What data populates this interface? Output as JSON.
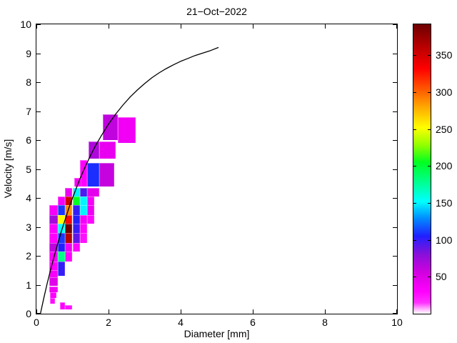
{
  "title": "21−Oct−2022",
  "axes": {
    "xlabel": "Diameter [mm]",
    "ylabel": "Velocity [m/s]",
    "xlim": [
      0,
      10
    ],
    "ylim": [
      0,
      10
    ],
    "x_ticks": [
      0,
      2,
      4,
      6,
      8,
      10
    ],
    "y_ticks": [
      0,
      1,
      2,
      3,
      4,
      5,
      6,
      7,
      8,
      9,
      10
    ]
  },
  "colorbar": {
    "vmin": 0,
    "vmax": 392,
    "ticks": [
      50,
      100,
      150,
      200,
      250,
      300,
      350
    ],
    "stops": [
      [
        0,
        "#ffffff"
      ],
      [
        6,
        "#ffb3ff"
      ],
      [
        15,
        "#ff30ff"
      ],
      [
        30,
        "#ff00ff"
      ],
      [
        55,
        "#d400e0"
      ],
      [
        80,
        "#8a10d8"
      ],
      [
        105,
        "#2020ff"
      ],
      [
        130,
        "#0090ff"
      ],
      [
        152,
        "#00ffff"
      ],
      [
        178,
        "#00ff90"
      ],
      [
        205,
        "#00ff20"
      ],
      [
        228,
        "#90ff00"
      ],
      [
        252,
        "#ffff00"
      ],
      [
        278,
        "#ffae00"
      ],
      [
        305,
        "#ff5500"
      ],
      [
        332,
        "#ff0000"
      ],
      [
        362,
        "#b70000"
      ],
      [
        392,
        "#6e0000"
      ]
    ]
  },
  "chart_data": {
    "type": "heatmap",
    "title": "21−Oct−2022",
    "xlabel": "Diameter [mm]",
    "ylabel": "Velocity [m/s]",
    "xlim": [
      0,
      10
    ],
    "ylim": [
      0,
      10
    ],
    "legend": "colorbar right, counts 0-392",
    "cells_format": [
      "d_min_mm",
      "d_max_mm",
      "v_min_ms",
      "v_max_ms",
      "count"
    ],
    "cells": [
      [
        1.85,
        2.25,
        6.0,
        6.9,
        62
      ],
      [
        2.25,
        2.75,
        5.9,
        6.8,
        38
      ],
      [
        1.45,
        1.75,
        5.35,
        5.95,
        68
      ],
      [
        1.75,
        2.2,
        5.35,
        5.95,
        42
      ],
      [
        1.2,
        1.4,
        4.4,
        5.3,
        30
      ],
      [
        1.4,
        1.75,
        4.4,
        5.2,
        108
      ],
      [
        1.75,
        2.15,
        4.4,
        5.2,
        60
      ],
      [
        1.05,
        1.25,
        4.4,
        4.7,
        32
      ],
      [
        0.8,
        1.0,
        4.05,
        4.35,
        40
      ],
      [
        1.0,
        1.2,
        4.05,
        4.35,
        150
      ],
      [
        1.2,
        1.4,
        4.05,
        4.35,
        95
      ],
      [
        1.4,
        1.75,
        4.05,
        4.35,
        45
      ],
      [
        0.6,
        0.8,
        3.75,
        4.05,
        35
      ],
      [
        0.8,
        1.0,
        3.75,
        4.05,
        352
      ],
      [
        1.0,
        1.2,
        3.75,
        4.05,
        205
      ],
      [
        1.2,
        1.4,
        3.75,
        4.05,
        150
      ],
      [
        1.4,
        1.6,
        3.75,
        4.05,
        35
      ],
      [
        0.35,
        0.6,
        3.4,
        3.75,
        35
      ],
      [
        0.6,
        0.8,
        3.4,
        3.75,
        110
      ],
      [
        0.8,
        1.0,
        3.4,
        3.75,
        288
      ],
      [
        1.0,
        1.2,
        3.4,
        3.75,
        100
      ],
      [
        1.2,
        1.4,
        3.4,
        3.75,
        150
      ],
      [
        1.4,
        1.6,
        3.4,
        3.75,
        40
      ],
      [
        0.35,
        0.6,
        3.1,
        3.4,
        72
      ],
      [
        0.6,
        0.8,
        3.1,
        3.4,
        252
      ],
      [
        0.8,
        1.0,
        3.1,
        3.4,
        330
      ],
      [
        1.0,
        1.2,
        3.1,
        3.4,
        105
      ],
      [
        1.2,
        1.4,
        3.1,
        3.4,
        35
      ],
      [
        1.4,
        1.6,
        3.1,
        3.4,
        28
      ],
      [
        0.35,
        0.6,
        2.8,
        3.1,
        32
      ],
      [
        0.6,
        0.8,
        2.8,
        3.1,
        152
      ],
      [
        0.8,
        1.0,
        2.8,
        3.1,
        390
      ],
      [
        1.0,
        1.2,
        2.8,
        3.1,
        100
      ],
      [
        1.2,
        1.4,
        2.8,
        3.1,
        28
      ],
      [
        0.35,
        0.6,
        2.45,
        2.8,
        30
      ],
      [
        0.6,
        0.8,
        2.45,
        2.8,
        110
      ],
      [
        0.8,
        1.0,
        2.45,
        2.8,
        362
      ],
      [
        1.0,
        1.2,
        2.45,
        2.8,
        90
      ],
      [
        1.2,
        1.4,
        2.45,
        2.8,
        25
      ],
      [
        0.35,
        0.6,
        2.15,
        2.45,
        62
      ],
      [
        0.6,
        0.8,
        2.15,
        2.45,
        105
      ],
      [
        0.8,
        1.0,
        2.15,
        2.45,
        40
      ],
      [
        1.0,
        1.2,
        2.15,
        2.45,
        28
      ],
      [
        0.35,
        0.6,
        1.8,
        2.15,
        33
      ],
      [
        0.6,
        0.8,
        1.8,
        2.15,
        180
      ],
      [
        0.8,
        1.0,
        1.8,
        2.15,
        30
      ],
      [
        0.35,
        0.6,
        1.5,
        1.8,
        30
      ],
      [
        0.6,
        0.8,
        1.3,
        1.8,
        100
      ],
      [
        0.35,
        0.6,
        1.25,
        1.5,
        35
      ],
      [
        0.35,
        0.6,
        0.95,
        1.25,
        48
      ],
      [
        0.35,
        0.6,
        0.75,
        0.95,
        38
      ],
      [
        0.38,
        0.55,
        0.55,
        0.75,
        30
      ],
      [
        0.38,
        0.52,
        0.35,
        0.55,
        26
      ],
      [
        0.65,
        0.8,
        0.15,
        0.4,
        30
      ],
      [
        0.8,
        1.0,
        0.15,
        0.3,
        25
      ]
    ],
    "curve": {
      "name": "terminal-velocity-curve",
      "points": [
        [
          0.11,
          0.0
        ],
        [
          0.2,
          0.51
        ],
        [
          0.3,
          1.05
        ],
        [
          0.4,
          1.55
        ],
        [
          0.5,
          2.02
        ],
        [
          0.6,
          2.46
        ],
        [
          0.7,
          2.88
        ],
        [
          0.8,
          3.26
        ],
        [
          0.9,
          3.65
        ],
        [
          1.0,
          3.99
        ],
        [
          1.1,
          4.32
        ],
        [
          1.2,
          4.64
        ],
        [
          1.35,
          5.07
        ],
        [
          1.5,
          5.47
        ],
        [
          1.65,
          5.83
        ],
        [
          1.8,
          6.15
        ],
        [
          2.0,
          6.55
        ],
        [
          2.2,
          6.9
        ],
        [
          2.4,
          7.21
        ],
        [
          2.6,
          7.49
        ],
        [
          2.8,
          7.73
        ],
        [
          3.0,
          7.95
        ],
        [
          3.2,
          8.15
        ],
        [
          3.4,
          8.32
        ],
        [
          3.6,
          8.47
        ],
        [
          3.8,
          8.6
        ],
        [
          4.0,
          8.72
        ],
        [
          4.2,
          8.82
        ],
        [
          4.4,
          8.92
        ],
        [
          4.6,
          9.0
        ],
        [
          4.8,
          9.08
        ],
        [
          5.05,
          9.2
        ]
      ]
    }
  }
}
